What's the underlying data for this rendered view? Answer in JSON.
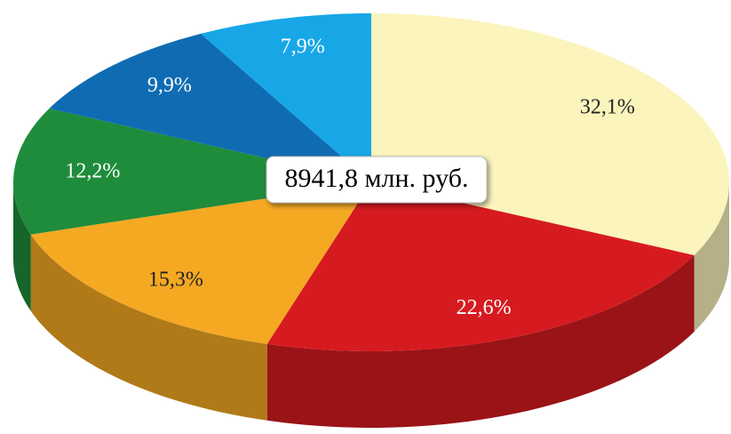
{
  "chart_data": {
    "type": "pie",
    "annotation": "8941,8 млн. руб.",
    "values": [
      32.1,
      22.6,
      15.3,
      12.2,
      9.9,
      7.9
    ],
    "value_labels": [
      "32,1%",
      "22,6%",
      "15,3%",
      "12,2%",
      "9,9%",
      "7,9%"
    ],
    "colors": [
      "#fbf4bd",
      "#d61b20",
      "#f5a923",
      "#1f8c3b",
      "#0f6cb3",
      "#17a7e6"
    ]
  }
}
